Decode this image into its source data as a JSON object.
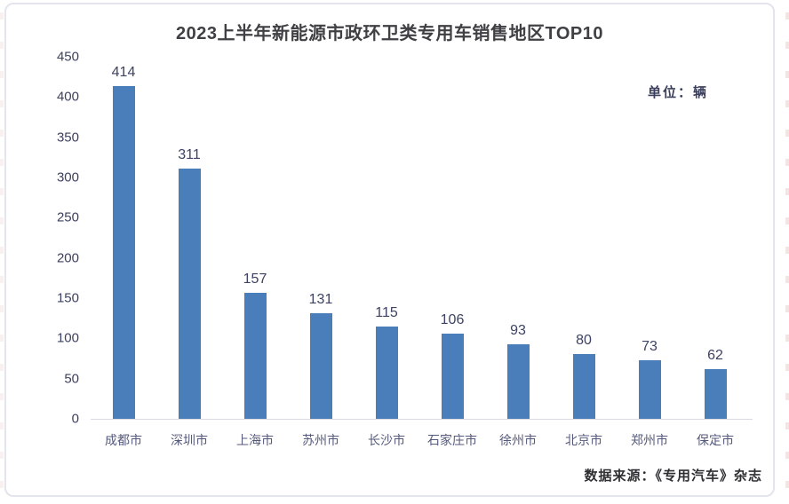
{
  "chart_data": {
    "type": "bar",
    "title": "2023上半年新能源市政环卫类专用车销售地区TOP10",
    "unit_label": "单位：辆",
    "source": "数据来源：《专用汽车》杂志",
    "categories": [
      "成都市",
      "深圳市",
      "上海市",
      "苏州市",
      "长沙市",
      "石家庄市",
      "徐州市",
      "北京市",
      "郑州市",
      "保定市"
    ],
    "values": [
      414,
      311,
      157,
      131,
      115,
      106,
      93,
      80,
      73,
      62
    ],
    "ylim": [
      0,
      450
    ],
    "yticks": [
      0,
      50,
      100,
      150,
      200,
      250,
      300,
      350,
      400,
      450
    ],
    "bar_color": "#4a7ebb",
    "grid": false,
    "legend": "none",
    "value_labels": true
  }
}
